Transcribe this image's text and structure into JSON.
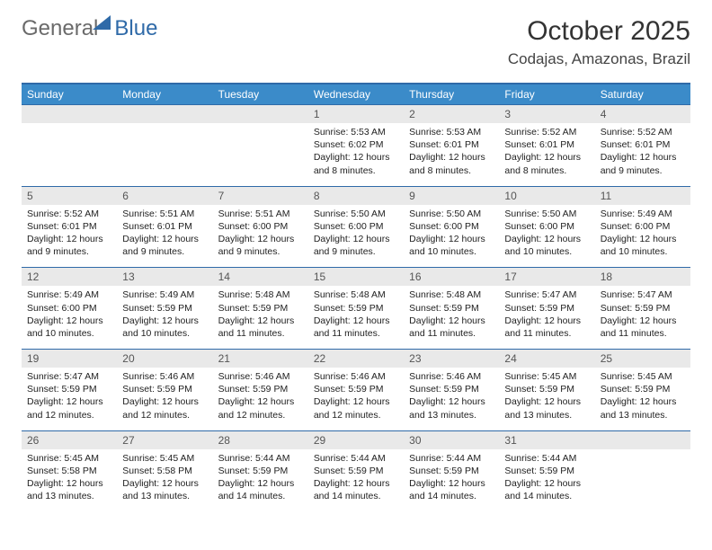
{
  "logo": {
    "text_main": "General",
    "text_sub": "Blue"
  },
  "title": "October 2025",
  "location": "Codajas, Amazonas, Brazil",
  "weekdays": [
    "Sunday",
    "Monday",
    "Tuesday",
    "Wednesday",
    "Thursday",
    "Friday",
    "Saturday"
  ],
  "colors": {
    "header_bg": "#3b8bc9",
    "border": "#2f6aa8",
    "daynum_bg": "#e9e9e9",
    "text": "#222222",
    "background": "#ffffff"
  },
  "weeks": [
    [
      {
        "day": "",
        "sunrise": "",
        "sunset": "",
        "daylight": ""
      },
      {
        "day": "",
        "sunrise": "",
        "sunset": "",
        "daylight": ""
      },
      {
        "day": "",
        "sunrise": "",
        "sunset": "",
        "daylight": ""
      },
      {
        "day": "1",
        "sunrise": "5:53 AM",
        "sunset": "6:02 PM",
        "daylight": "12 hours and 8 minutes."
      },
      {
        "day": "2",
        "sunrise": "5:53 AM",
        "sunset": "6:01 PM",
        "daylight": "12 hours and 8 minutes."
      },
      {
        "day": "3",
        "sunrise": "5:52 AM",
        "sunset": "6:01 PM",
        "daylight": "12 hours and 8 minutes."
      },
      {
        "day": "4",
        "sunrise": "5:52 AM",
        "sunset": "6:01 PM",
        "daylight": "12 hours and 9 minutes."
      }
    ],
    [
      {
        "day": "5",
        "sunrise": "5:52 AM",
        "sunset": "6:01 PM",
        "daylight": "12 hours and 9 minutes."
      },
      {
        "day": "6",
        "sunrise": "5:51 AM",
        "sunset": "6:01 PM",
        "daylight": "12 hours and 9 minutes."
      },
      {
        "day": "7",
        "sunrise": "5:51 AM",
        "sunset": "6:00 PM",
        "daylight": "12 hours and 9 minutes."
      },
      {
        "day": "8",
        "sunrise": "5:50 AM",
        "sunset": "6:00 PM",
        "daylight": "12 hours and 9 minutes."
      },
      {
        "day": "9",
        "sunrise": "5:50 AM",
        "sunset": "6:00 PM",
        "daylight": "12 hours and 10 minutes."
      },
      {
        "day": "10",
        "sunrise": "5:50 AM",
        "sunset": "6:00 PM",
        "daylight": "12 hours and 10 minutes."
      },
      {
        "day": "11",
        "sunrise": "5:49 AM",
        "sunset": "6:00 PM",
        "daylight": "12 hours and 10 minutes."
      }
    ],
    [
      {
        "day": "12",
        "sunrise": "5:49 AM",
        "sunset": "6:00 PM",
        "daylight": "12 hours and 10 minutes."
      },
      {
        "day": "13",
        "sunrise": "5:49 AM",
        "sunset": "5:59 PM",
        "daylight": "12 hours and 10 minutes."
      },
      {
        "day": "14",
        "sunrise": "5:48 AM",
        "sunset": "5:59 PM",
        "daylight": "12 hours and 11 minutes."
      },
      {
        "day": "15",
        "sunrise": "5:48 AM",
        "sunset": "5:59 PM",
        "daylight": "12 hours and 11 minutes."
      },
      {
        "day": "16",
        "sunrise": "5:48 AM",
        "sunset": "5:59 PM",
        "daylight": "12 hours and 11 minutes."
      },
      {
        "day": "17",
        "sunrise": "5:47 AM",
        "sunset": "5:59 PM",
        "daylight": "12 hours and 11 minutes."
      },
      {
        "day": "18",
        "sunrise": "5:47 AM",
        "sunset": "5:59 PM",
        "daylight": "12 hours and 11 minutes."
      }
    ],
    [
      {
        "day": "19",
        "sunrise": "5:47 AM",
        "sunset": "5:59 PM",
        "daylight": "12 hours and 12 minutes."
      },
      {
        "day": "20",
        "sunrise": "5:46 AM",
        "sunset": "5:59 PM",
        "daylight": "12 hours and 12 minutes."
      },
      {
        "day": "21",
        "sunrise": "5:46 AM",
        "sunset": "5:59 PM",
        "daylight": "12 hours and 12 minutes."
      },
      {
        "day": "22",
        "sunrise": "5:46 AM",
        "sunset": "5:59 PM",
        "daylight": "12 hours and 12 minutes."
      },
      {
        "day": "23",
        "sunrise": "5:46 AM",
        "sunset": "5:59 PM",
        "daylight": "12 hours and 13 minutes."
      },
      {
        "day": "24",
        "sunrise": "5:45 AM",
        "sunset": "5:59 PM",
        "daylight": "12 hours and 13 minutes."
      },
      {
        "day": "25",
        "sunrise": "5:45 AM",
        "sunset": "5:59 PM",
        "daylight": "12 hours and 13 minutes."
      }
    ],
    [
      {
        "day": "26",
        "sunrise": "5:45 AM",
        "sunset": "5:58 PM",
        "daylight": "12 hours and 13 minutes."
      },
      {
        "day": "27",
        "sunrise": "5:45 AM",
        "sunset": "5:58 PM",
        "daylight": "12 hours and 13 minutes."
      },
      {
        "day": "28",
        "sunrise": "5:44 AM",
        "sunset": "5:59 PM",
        "daylight": "12 hours and 14 minutes."
      },
      {
        "day": "29",
        "sunrise": "5:44 AM",
        "sunset": "5:59 PM",
        "daylight": "12 hours and 14 minutes."
      },
      {
        "day": "30",
        "sunrise": "5:44 AM",
        "sunset": "5:59 PM",
        "daylight": "12 hours and 14 minutes."
      },
      {
        "day": "31",
        "sunrise": "5:44 AM",
        "sunset": "5:59 PM",
        "daylight": "12 hours and 14 minutes."
      },
      {
        "day": "",
        "sunrise": "",
        "sunset": "",
        "daylight": ""
      }
    ]
  ],
  "labels": {
    "sunrise": "Sunrise:",
    "sunset": "Sunset:",
    "daylight": "Daylight:"
  }
}
